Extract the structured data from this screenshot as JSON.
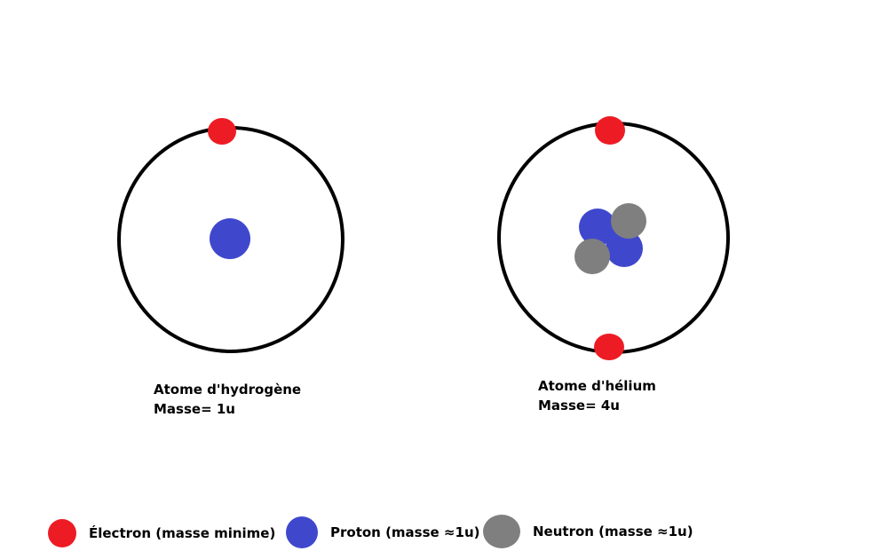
{
  "colors": {
    "electron": "#ed1c24",
    "proton": "#3f48cc",
    "neutron": "#7f7f7f",
    "orbit": "#000000"
  },
  "atoms": [
    {
      "id": "hydrogen",
      "name": "Atome d'hydrogène",
      "mass": "Masse= 1u",
      "protons": 1,
      "neutrons": 0,
      "electrons": 1
    },
    {
      "id": "helium",
      "name": "Atome d'hélium",
      "mass": "Masse= 4u",
      "protons": 2,
      "neutrons": 2,
      "electrons": 2
    }
  ],
  "legend": {
    "electron": "Électron (masse minime)",
    "proton": "Proton (masse ≈1u)",
    "neutron": "Neutron (masse ≈1u)"
  }
}
